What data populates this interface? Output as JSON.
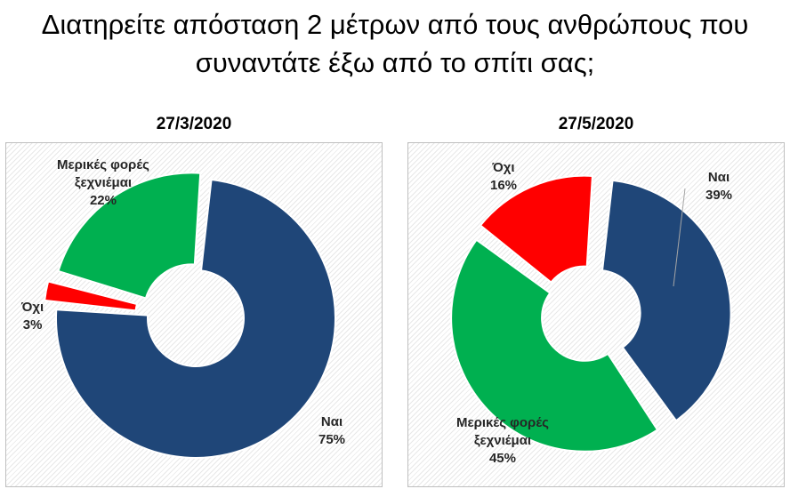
{
  "title_line1": "Διατηρείτε απόσταση 2 μέτρων από τους ανθρώπους που",
  "title_line2": "συναντάτε έξω από το σπίτι σας;",
  "chart_data": [
    {
      "type": "pie",
      "title": "27/3/2020",
      "categories": [
        "Ναι",
        "Όχι",
        "Μερικές φορές ξεχνιέμαι"
      ],
      "values": [
        75,
        3,
        22
      ],
      "value_labels": [
        "75%",
        "3%",
        "22%"
      ],
      "label_lines": [
        [
          "Ναι"
        ],
        [
          "Όχι"
        ],
        [
          "Μερικές φορές",
          "ξεχνιέμαι"
        ]
      ],
      "colors": [
        "#1f4678",
        "#ff0000",
        "#00b050"
      ],
      "exploded": true,
      "legend": "none"
    },
    {
      "type": "pie",
      "title": "27/5/2020",
      "categories": [
        "Ναι",
        "Μερικές φορές ξεχνιέμαι",
        "Όχι"
      ],
      "values": [
        39,
        45,
        16
      ],
      "value_labels": [
        "39%",
        "45%",
        "16%"
      ],
      "label_lines": [
        [
          "Ναι"
        ],
        [
          "Μερικές φορές",
          "ξεχνιέμαι"
        ],
        [
          "Όχι"
        ]
      ],
      "colors": [
        "#1f4678",
        "#00b050",
        "#ff0000"
      ],
      "exploded": true,
      "legend": "none"
    }
  ]
}
